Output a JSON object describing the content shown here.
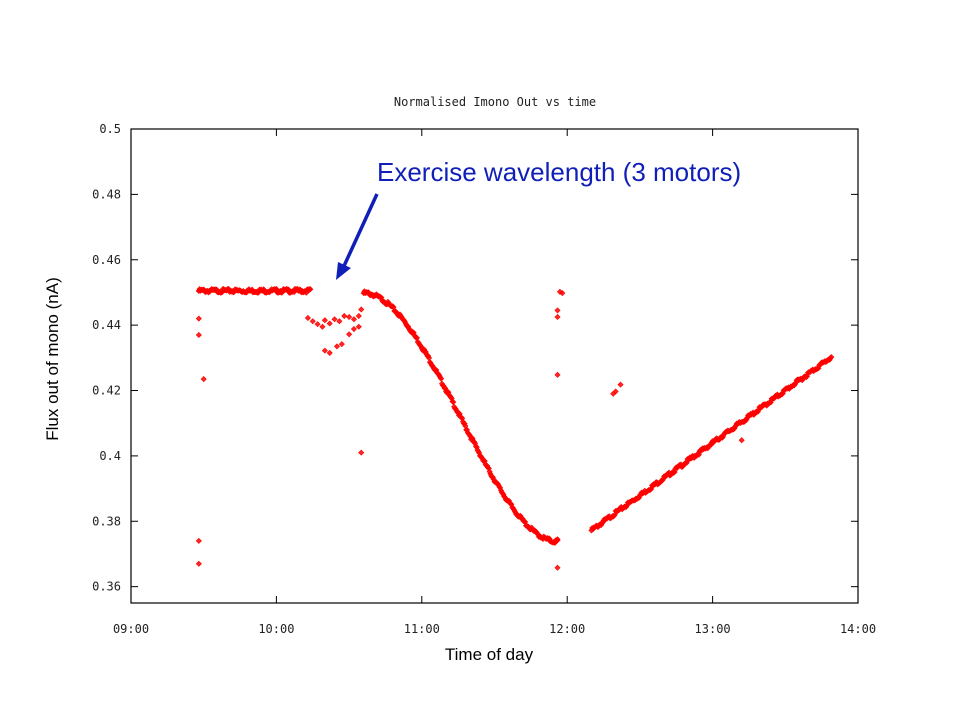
{
  "chart_data": {
    "type": "scatter",
    "title": "Normalised Imono Out vs time",
    "xlabel": "Time of day",
    "ylabel": "Flux out of mono (nA)",
    "xlim": [
      "09:00",
      "14:00"
    ],
    "ylim": [
      0.355,
      0.5
    ],
    "x_ticks": [
      "09:00",
      "10:00",
      "11:00",
      "12:00",
      "13:00",
      "14:00"
    ],
    "y_ticks": [
      "0.5",
      "0.48",
      "0.46",
      "0.44",
      "0.42",
      "0.4",
      "0.38",
      "0.36"
    ],
    "grid": false,
    "annotation": {
      "text": "Exercise wavelength (3 motors)",
      "points_to": {
        "x": "10:24",
        "y": 0.456
      }
    },
    "series": [
      {
        "color": "#ff0000",
        "segments": [
          {
            "from": "09:28",
            "to": "10:14",
            "shape": "flat",
            "y": 0.4505
          },
          {
            "from": "10:36",
            "to": "11:56",
            "shape": "dip",
            "y_start": 0.4498,
            "y_end": 0.3738
          },
          {
            "from": "12:10",
            "to": "13:49",
            "shape": "linear",
            "y_start": 0.3772,
            "y_end": 0.4302
          }
        ],
        "points": [
          [
            "09:28",
            0.4505
          ],
          [
            "09:28",
            0.442
          ],
          [
            "09:28",
            0.437
          ],
          [
            "09:30",
            0.4235
          ],
          [
            "09:28",
            0.374
          ],
          [
            "09:28",
            0.367
          ],
          [
            "10:13",
            0.4422
          ],
          [
            "10:15",
            0.4412
          ],
          [
            "10:17",
            0.4403
          ],
          [
            "10:19",
            0.4395
          ],
          [
            "10:20",
            0.4415
          ],
          [
            "10:22",
            0.4405
          ],
          [
            "10:24",
            0.4418
          ],
          [
            "10:26",
            0.4412
          ],
          [
            "10:28",
            0.4428
          ],
          [
            "10:30",
            0.4425
          ],
          [
            "10:32",
            0.4418
          ],
          [
            "10:34",
            0.4428
          ],
          [
            "10:35",
            0.4448
          ],
          [
            "10:20",
            0.4322
          ],
          [
            "10:22",
            0.4315
          ],
          [
            "10:25",
            0.4335
          ],
          [
            "10:27",
            0.4342
          ],
          [
            "10:30",
            0.4372
          ],
          [
            "10:32",
            0.4388
          ],
          [
            "10:34",
            0.4395
          ],
          [
            "10:35",
            0.401
          ],
          [
            "11:57",
            0.4502
          ],
          [
            "11:58",
            0.4498
          ],
          [
            "11:56",
            0.4445
          ],
          [
            "11:56",
            0.4425
          ],
          [
            "11:56",
            0.4248
          ],
          [
            "11:56",
            0.3745
          ],
          [
            "11:56",
            0.3658
          ],
          [
            "12:19",
            0.419
          ],
          [
            "12:20",
            0.4197
          ],
          [
            "12:22",
            0.4218
          ],
          [
            "13:12",
            0.4048
          ]
        ]
      }
    ]
  }
}
